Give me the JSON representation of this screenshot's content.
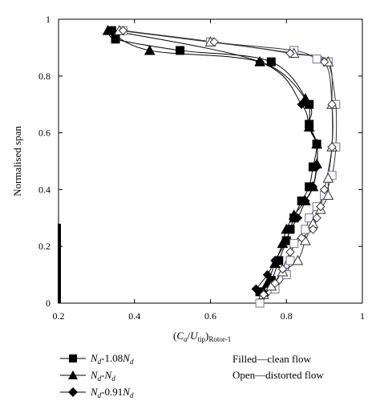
{
  "chart_data": {
    "type": "line",
    "xlabel_parts": {
      "open": "(",
      "c": "C",
      "a": "a",
      "slash": "/",
      "u": "U",
      "tip": "tip",
      "close": ")",
      "rotor": "Rotor-1"
    },
    "ylabel": "Normalised span",
    "xlim": [
      0.2,
      1.0
    ],
    "ylim": [
      0,
      1.0
    ],
    "xticks": [
      "0.2",
      "0.4",
      "0.6",
      "0.8",
      "1"
    ],
    "yticks": [
      "0",
      "0.2",
      "0.4",
      "0.6",
      "0.8",
      "1"
    ],
    "grid": false,
    "legend": {
      "entries": [
        {
          "n": "N",
          "sub": "d",
          "mid": "-1.08",
          "n2": "N",
          "sub2": "d",
          "marker": "square"
        },
        {
          "n": "N",
          "sub": "d",
          "mid": "-",
          "n2": "N",
          "sub2": "d",
          "marker": "triangle"
        },
        {
          "n": "N",
          "sub": "d",
          "mid": "-0.91",
          "n2": "N",
          "sub2": "d",
          "marker": "diamond"
        }
      ],
      "notes": [
        "Filled—clean flow",
        "Open—distorted flow"
      ],
      "placement": "bottom"
    },
    "series": [
      {
        "marker": "square",
        "fill": "filled",
        "x": [
          0.73,
          0.76,
          0.78,
          0.8,
          0.81,
          0.82,
          0.84,
          0.86,
          0.87,
          0.88,
          0.86,
          0.86,
          0.76,
          0.52,
          0.35,
          0.34
        ],
        "y": [
          0.04,
          0.08,
          0.15,
          0.22,
          0.26,
          0.3,
          0.36,
          0.41,
          0.48,
          0.56,
          0.63,
          0.7,
          0.85,
          0.89,
          0.93,
          0.96
        ]
      },
      {
        "marker": "triangle",
        "fill": "filled",
        "x": [
          0.74,
          0.75,
          0.77,
          0.79,
          0.8,
          0.82,
          0.85,
          0.87,
          0.88,
          0.88,
          0.86,
          0.85,
          0.73,
          0.44,
          0.33
        ],
        "y": [
          0.04,
          0.07,
          0.14,
          0.21,
          0.26,
          0.31,
          0.36,
          0.41,
          0.49,
          0.56,
          0.62,
          0.72,
          0.85,
          0.89,
          0.96
        ]
      },
      {
        "marker": "diamond",
        "fill": "filled",
        "x": [
          0.72,
          0.75,
          0.77,
          0.8,
          0.81,
          0.83,
          0.85,
          0.87,
          0.88,
          0.88,
          0.86,
          0.84,
          0.73,
          0.34
        ],
        "y": [
          0.05,
          0.1,
          0.15,
          0.22,
          0.26,
          0.3,
          0.36,
          0.41,
          0.48,
          0.56,
          0.62,
          0.7,
          0.85,
          0.96
        ]
      },
      {
        "marker": "square",
        "fill": "open",
        "x": [
          0.73,
          0.77,
          0.8,
          0.81,
          0.82,
          0.85,
          0.86,
          0.88,
          0.9,
          0.92,
          0.93,
          0.93,
          0.91,
          0.88,
          0.82,
          0.6,
          0.37
        ],
        "y": [
          0.0,
          0.05,
          0.1,
          0.15,
          0.21,
          0.26,
          0.3,
          0.34,
          0.38,
          0.45,
          0.55,
          0.7,
          0.85,
          0.86,
          0.89,
          0.92,
          0.96
        ]
      },
      {
        "marker": "triangle",
        "fill": "open",
        "x": [
          0.74,
          0.76,
          0.79,
          0.83,
          0.85,
          0.87,
          0.89,
          0.91,
          0.91,
          0.92,
          0.92,
          0.91,
          0.82,
          0.6,
          0.36
        ],
        "y": [
          0.03,
          0.06,
          0.11,
          0.15,
          0.22,
          0.28,
          0.33,
          0.38,
          0.44,
          0.55,
          0.7,
          0.85,
          0.88,
          0.92,
          0.96
        ]
      },
      {
        "marker": "diamond",
        "fill": "open",
        "x": [
          0.74,
          0.77,
          0.79,
          0.81,
          0.84,
          0.87,
          0.88,
          0.89,
          0.9,
          0.92,
          0.92,
          0.9,
          0.81,
          0.61,
          0.37
        ],
        "y": [
          0.03,
          0.07,
          0.12,
          0.18,
          0.23,
          0.26,
          0.3,
          0.34,
          0.4,
          0.55,
          0.7,
          0.85,
          0.88,
          0.92,
          0.96
        ]
      }
    ]
  }
}
